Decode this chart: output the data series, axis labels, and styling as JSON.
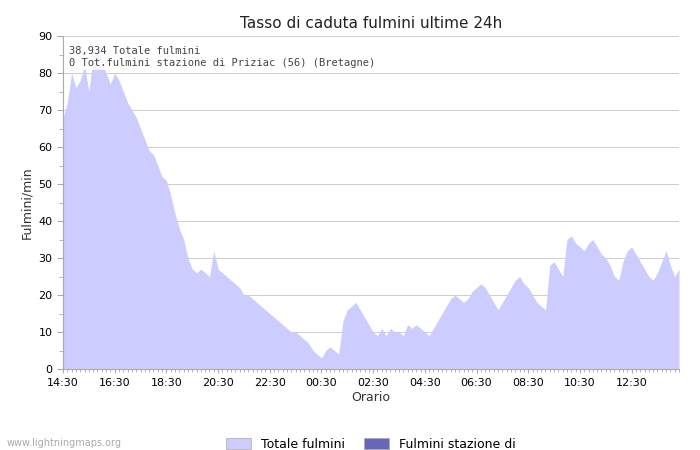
{
  "title": "Tasso di caduta fulmini ultime 24h",
  "xlabel": "Orario",
  "ylabel": "Fulmini/min",
  "ylim": [
    0,
    90
  ],
  "yticks": [
    0,
    10,
    20,
    30,
    40,
    50,
    60,
    70,
    80,
    90
  ],
  "xtick_labels": [
    "14:30",
    "16:30",
    "18:30",
    "20:30",
    "22:30",
    "00:30",
    "02:30",
    "04:30",
    "06:30",
    "08:30",
    "10:30",
    "12:30"
  ],
  "annotation_line1": "38,934 Totale fulmini",
  "annotation_line2": "0 Tot.fulmini stazione di Priziac (56) (Bretagne)",
  "legend_label1": "Totale fulmini",
  "legend_label2": "Fulmini stazione di",
  "fill_color1": "#ccccff",
  "fill_color2": "#6666bb",
  "watermark": "www.lightningmaps.org",
  "bg_color": "#ffffff",
  "grid_color": "#cccccc",
  "data_y": [
    68,
    72,
    80,
    76,
    78,
    82,
    75,
    84,
    87,
    83,
    80,
    77,
    80,
    78,
    75,
    72,
    70,
    68,
    65,
    62,
    59,
    58,
    55,
    52,
    51,
    47,
    42,
    38,
    35,
    30,
    27,
    26,
    27,
    26,
    25,
    32,
    27,
    26,
    25,
    24,
    23,
    22,
    20,
    20,
    19,
    18,
    17,
    16,
    15,
    14,
    13,
    12,
    11,
    10,
    10,
    9,
    8,
    7,
    5,
    4,
    3,
    5,
    6,
    5,
    4,
    13,
    16,
    17,
    18,
    16,
    14,
    12,
    10,
    9,
    11,
    9,
    11,
    10,
    10,
    9,
    12,
    11,
    12,
    11,
    10,
    9,
    11,
    13,
    15,
    17,
    19,
    20,
    19,
    18,
    19,
    21,
    22,
    23,
    22,
    20,
    18,
    16,
    18,
    20,
    22,
    24,
    25,
    23,
    22,
    20,
    18,
    17,
    16,
    28,
    29,
    27,
    25,
    35,
    36,
    34,
    33,
    32,
    34,
    35,
    33,
    31,
    30,
    28,
    25,
    24,
    29,
    32,
    33,
    31,
    29,
    27,
    25,
    24,
    26,
    29,
    32,
    28,
    25,
    27
  ]
}
